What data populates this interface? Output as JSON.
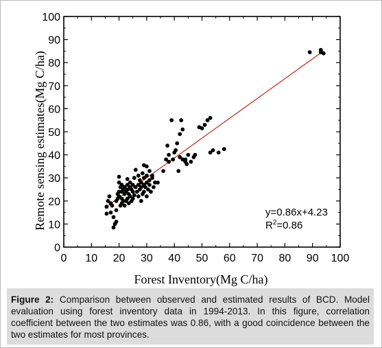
{
  "chart_data": {
    "type": "scatter",
    "xlabel": "Forest Inventory(Mg C/ha)",
    "ylabel": "Remote sensing estimates(Mg C/ha)",
    "xlim": [
      0,
      100
    ],
    "ylim": [
      0,
      100
    ],
    "xticks": [
      "0",
      "10",
      "20",
      "30",
      "40",
      "50",
      "60",
      "70",
      "80",
      "90",
      "100"
    ],
    "yticks": [
      "0",
      "10",
      "20",
      "30",
      "40",
      "50",
      "60",
      "70",
      "80",
      "90",
      "100"
    ],
    "grid": false,
    "annotation_line1": "y=0.86x+4.23",
    "annotation_line2_prefix": "R",
    "annotation_line2_sup": "2",
    "annotation_line2_suffix": "=0.86",
    "regression": {
      "slope": 0.86,
      "intercept": 4.23,
      "x_range": [
        15.5,
        94
      ],
      "color": "#c0392b"
    },
    "points": [
      [
        15.5,
        17.5
      ],
      [
        15.5,
        14.5
      ],
      [
        16,
        20
      ],
      [
        16.5,
        22
      ],
      [
        17,
        15
      ],
      [
        17,
        19
      ],
      [
        17.5,
        18
      ],
      [
        18,
        8.5
      ],
      [
        18,
        13
      ],
      [
        18.5,
        10
      ],
      [
        19,
        11
      ],
      [
        19,
        16
      ],
      [
        19,
        20
      ],
      [
        19.5,
        21
      ],
      [
        19.5,
        23
      ],
      [
        20,
        22
      ],
      [
        20,
        24
      ],
      [
        20,
        28
      ],
      [
        20,
        30.5
      ],
      [
        20.5,
        18
      ],
      [
        20.5,
        26
      ],
      [
        21,
        19
      ],
      [
        21,
        21
      ],
      [
        21,
        24
      ],
      [
        21,
        27
      ],
      [
        21.5,
        20
      ],
      [
        21.5,
        25
      ],
      [
        22,
        18
      ],
      [
        22,
        23
      ],
      [
        22,
        26
      ],
      [
        22.5,
        20
      ],
      [
        22.5,
        24
      ],
      [
        23,
        21
      ],
      [
        23,
        25
      ],
      [
        23,
        27
      ],
      [
        23,
        29.5
      ],
      [
        23.5,
        19
      ],
      [
        23.5,
        23
      ],
      [
        24,
        22
      ],
      [
        24,
        26
      ],
      [
        24,
        28
      ],
      [
        24.5,
        20
      ],
      [
        24.5,
        25
      ],
      [
        25,
        21
      ],
      [
        25,
        24
      ],
      [
        25,
        27
      ],
      [
        25.5,
        30
      ],
      [
        25.5,
        22.5
      ],
      [
        26,
        26
      ],
      [
        26,
        33.5
      ],
      [
        26.5,
        24
      ],
      [
        27,
        22
      ],
      [
        27,
        27
      ],
      [
        27,
        31
      ],
      [
        27.5,
        25
      ],
      [
        27.5,
        29
      ],
      [
        28,
        20
      ],
      [
        28,
        26
      ],
      [
        28,
        28
      ],
      [
        28.5,
        23
      ],
      [
        28.5,
        32
      ],
      [
        29,
        24
      ],
      [
        29,
        27
      ],
      [
        29,
        30
      ],
      [
        29,
        35.5
      ],
      [
        29.5,
        26
      ],
      [
        30,
        22
      ],
      [
        30,
        28
      ],
      [
        30,
        31
      ],
      [
        30,
        35
      ],
      [
        30.5,
        25
      ],
      [
        31,
        27
      ],
      [
        31,
        29
      ],
      [
        31,
        33
      ],
      [
        31.5,
        24
      ],
      [
        32,
        30
      ],
      [
        32,
        31
      ],
      [
        32.5,
        26
      ],
      [
        33,
        28
      ],
      [
        34,
        28
      ],
      [
        36,
        33
      ],
      [
        37,
        38
      ],
      [
        37.5,
        44
      ],
      [
        38,
        40
      ],
      [
        38,
        37
      ],
      [
        39,
        55
      ],
      [
        39.5,
        38
      ],
      [
        40,
        41
      ],
      [
        40.5,
        42
      ],
      [
        41,
        45
      ],
      [
        41.5,
        33
      ],
      [
        42,
        39
      ],
      [
        42,
        49
      ],
      [
        42.5,
        55
      ],
      [
        43,
        38
      ],
      [
        43,
        51
      ],
      [
        44,
        37
      ],
      [
        44,
        38
      ],
      [
        44.5,
        36
      ],
      [
        45,
        40
      ],
      [
        46,
        37
      ],
      [
        47,
        39
      ],
      [
        47.5,
        40
      ],
      [
        49,
        52
      ],
      [
        50,
        51.5
      ],
      [
        51,
        53
      ],
      [
        52,
        55
      ],
      [
        53,
        56
      ],
      [
        53,
        41
      ],
      [
        54,
        42
      ],
      [
        56,
        41
      ],
      [
        58,
        42.5
      ],
      [
        89,
        84.5
      ],
      [
        93,
        85.5
      ],
      [
        93,
        84.5
      ],
      [
        94,
        84
      ]
    ]
  },
  "caption": {
    "label": "Figure 2:",
    "text": " Comparison between observed and estimated results of BCD. Model evaluation using forest inventory data in 1994-2013. In this figure, correlation coefficient between the two estimates was 0.86, with a good coincidence between the two estimates for most provinces."
  }
}
